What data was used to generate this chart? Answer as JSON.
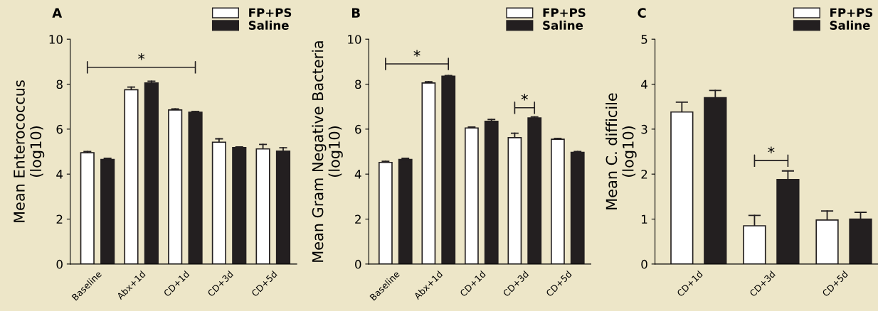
{
  "chart_data": [
    {
      "type": "bar",
      "title": "A",
      "ylabel": "Mean Enterococcus\n(log10)",
      "categories": [
        "Baseline",
        "Abx+1d",
        "CD+1d",
        "CD+3d",
        "CD+5d"
      ],
      "series": [
        {
          "name": "FP+PS",
          "color": "#ffffff",
          "values": [
            4.95,
            7.75,
            6.85,
            5.42,
            5.12
          ],
          "errors": [
            [
              4.95,
              5.0
            ],
            [
              7.75,
              7.87
            ],
            [
              6.85,
              6.9
            ],
            [
              5.42,
              5.57
            ],
            [
              5.12,
              5.32
            ]
          ]
        },
        {
          "name": "Saline",
          "color": "#231f20",
          "values": [
            4.65,
            8.05,
            6.75,
            5.18,
            5.02
          ],
          "errors": [
            [
              4.65,
              4.7
            ],
            [
              8.05,
              8.13
            ],
            [
              6.75,
              6.79
            ],
            [
              5.18,
              5.21
            ],
            [
              5.02,
              5.17
            ]
          ]
        }
      ],
      "ylim": [
        0,
        10
      ],
      "yticks": [
        0,
        2,
        4,
        6,
        8,
        10
      ],
      "grid": false,
      "legend": "top right",
      "annotations": [
        "*"
      ]
    },
    {
      "type": "bar",
      "title": "B",
      "ylabel": "Mean Gram Negative Bacteria\n(log10)",
      "categories": [
        "Baseline",
        "Abx+1d",
        "CD+1d",
        "CD+3d",
        "CD+5d"
      ],
      "series": [
        {
          "name": "FP+PS",
          "color": "#ffffff",
          "values": [
            4.52,
            8.05,
            6.05,
            5.62,
            5.55
          ],
          "errors": [
            [
              4.52,
              4.57
            ],
            [
              8.05,
              8.11
            ],
            [
              6.05,
              6.09
            ],
            [
              5.62,
              5.82
            ],
            [
              5.55,
              5.59
            ]
          ]
        },
        {
          "name": "Saline",
          "color": "#231f20",
          "values": [
            4.65,
            8.35,
            6.35,
            6.5,
            4.97
          ],
          "errors": [
            [
              4.65,
              4.7
            ],
            [
              8.35,
              8.38
            ],
            [
              6.35,
              6.43
            ],
            [
              6.5,
              6.54
            ],
            [
              4.97,
              5.0
            ]
          ]
        }
      ],
      "ylim": [
        0,
        10
      ],
      "yticks": [
        0,
        2,
        4,
        6,
        8,
        10
      ],
      "grid": false,
      "legend": "top right",
      "annotations": [
        "*",
        "*"
      ]
    },
    {
      "type": "bar",
      "title": "C",
      "ylabel": "Mean C. difficile\n(log10)",
      "categories": [
        "CD+1d",
        "CD+3d",
        "CD+5d"
      ],
      "series": [
        {
          "name": "FP+PS",
          "color": "#ffffff",
          "values": [
            3.38,
            0.85,
            0.98
          ],
          "errors": [
            [
              3.38,
              3.6
            ],
            [
              0.85,
              1.08
            ],
            [
              0.98,
              1.18
            ]
          ]
        },
        {
          "name": "Saline",
          "color": "#231f20",
          "values": [
            3.7,
            1.88,
            1.0
          ],
          "errors": [
            [
              3.7,
              3.86
            ],
            [
              1.88,
              2.07
            ],
            [
              1.0,
              1.15
            ]
          ]
        }
      ],
      "ylim": [
        0,
        5
      ],
      "yticks": [
        0,
        1,
        2,
        3,
        4,
        5
      ],
      "grid": false,
      "legend": "top right",
      "annotations": [
        "*"
      ]
    }
  ]
}
